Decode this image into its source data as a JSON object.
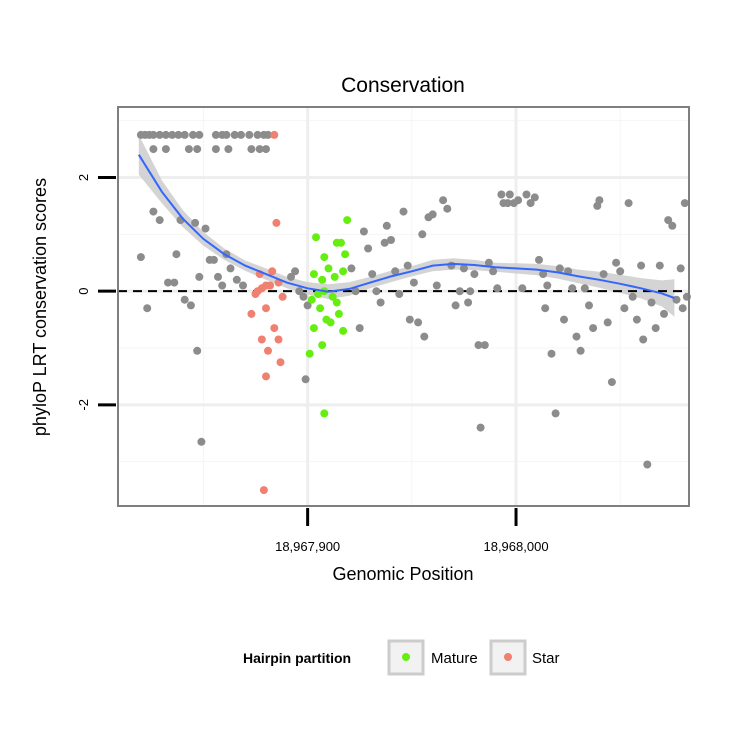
{
  "chart_data": {
    "type": "scatter",
    "title": "Conservation",
    "xlabel": "Genomic Position",
    "ylabel": "phyloP LRT conservation scores",
    "x_ticks": [
      {
        "value": 18967900,
        "label": "18,967,900"
      },
      {
        "value": 18968000,
        "label": "18,968,000"
      }
    ],
    "y_ticks": [
      {
        "value": -2,
        "label": "-2"
      },
      {
        "value": 0,
        "label": "0"
      },
      {
        "value": 2,
        "label": "2"
      }
    ],
    "xlim": [
      18967809,
      18968083
    ],
    "ylim": [
      -3.78,
      3.24
    ],
    "grid": true,
    "reference_line": {
      "y": 0,
      "style": "dashed"
    },
    "legend": {
      "title": "Hairpin partition",
      "position": "bottom",
      "entries": [
        {
          "label": "Mature",
          "color": "#66ee11"
        },
        {
          "label": "Star",
          "color": "#f08070"
        }
      ]
    },
    "colors": {
      "other": "#8c8c8c",
      "mature": "#66ee11",
      "star": "#f08070",
      "smooth": "#3366ff",
      "band": "#cccccc"
    },
    "smooth": {
      "x": [
        18967819,
        18967830,
        18967840,
        18967850,
        18967860,
        18967870,
        18967880,
        18967890,
        18967900,
        18967910,
        18967920,
        18967930,
        18967940,
        18967950,
        18967960,
        18967970,
        18967980,
        18967990,
        18968000,
        18968010,
        18968020,
        18968030,
        18968040,
        18968050,
        18968060,
        18968070,
        18968076
      ],
      "y": [
        2.4,
        1.75,
        1.28,
        0.92,
        0.65,
        0.45,
        0.3,
        0.15,
        0.05,
        -0.01,
        0.04,
        0.15,
        0.26,
        0.35,
        0.45,
        0.48,
        0.46,
        0.42,
        0.4,
        0.38,
        0.33,
        0.26,
        0.2,
        0.13,
        0.05,
        -0.04,
        -0.12
      ],
      "lower": [
        2.05,
        1.55,
        1.13,
        0.8,
        0.55,
        0.36,
        0.2,
        0.05,
        -0.06,
        -0.14,
        -0.08,
        0.05,
        0.16,
        0.26,
        0.35,
        0.38,
        0.37,
        0.34,
        0.31,
        0.28,
        0.22,
        0.14,
        0.06,
        -0.03,
        -0.13,
        -0.27,
        -0.45
      ],
      "upper": [
        2.75,
        1.95,
        1.43,
        1.04,
        0.75,
        0.54,
        0.4,
        0.25,
        0.16,
        0.12,
        0.16,
        0.25,
        0.36,
        0.44,
        0.55,
        0.58,
        0.55,
        0.5,
        0.49,
        0.48,
        0.44,
        0.38,
        0.34,
        0.29,
        0.23,
        0.19,
        0.21
      ]
    },
    "series": [
      {
        "name": "Mature",
        "color": "#66ee11",
        "points": [
          [
            18967904,
            0.95
          ],
          [
            18967908,
            0.6
          ],
          [
            18967910,
            0.4
          ],
          [
            18967914,
            0.85
          ],
          [
            18967916,
            0.85
          ],
          [
            18967918,
            0.65
          ],
          [
            18967919,
            1.25
          ],
          [
            18967913,
            0.25
          ],
          [
            18967903,
            0.3
          ],
          [
            18967907,
            0.2
          ],
          [
            18967917,
            0.35
          ],
          [
            18967905,
            -0.05
          ],
          [
            18967908,
            0.0
          ],
          [
            18967912,
            -0.1
          ],
          [
            18967902,
            -0.15
          ],
          [
            18967906,
            -0.3
          ],
          [
            18967914,
            -0.2
          ],
          [
            18967915,
            -0.4
          ],
          [
            18967903,
            -0.65
          ],
          [
            18967909,
            -0.5
          ],
          [
            18967911,
            -0.55
          ],
          [
            18967917,
            -0.7
          ],
          [
            18967907,
            -0.95
          ],
          [
            18967901,
            -1.1
          ],
          [
            18967908,
            -2.15
          ]
        ]
      },
      {
        "name": "Star",
        "color": "#f08070",
        "points": [
          [
            18967884,
            2.75
          ],
          [
            18967885,
            1.2
          ],
          [
            18967883,
            0.35
          ],
          [
            18967886,
            0.15
          ],
          [
            18967877,
            0.3
          ],
          [
            18967880,
            0.1
          ],
          [
            18967878,
            0.05
          ],
          [
            18967876,
            0.0
          ],
          [
            18967875,
            -0.05
          ],
          [
            18967882,
            0.1
          ],
          [
            18967888,
            -0.1
          ],
          [
            18967873,
            -0.4
          ],
          [
            18967880,
            -0.3
          ],
          [
            18967884,
            -0.65
          ],
          [
            18967886,
            -0.85
          ],
          [
            18967878,
            -0.85
          ],
          [
            18967881,
            -1.05
          ],
          [
            18967887,
            -1.25
          ],
          [
            18967880,
            -1.5
          ],
          [
            18967879,
            -3.5
          ]
        ]
      },
      {
        "name": "",
        "color": "#8c8c8c",
        "points": [
          [
            18967820,
            2.75
          ],
          [
            18967822,
            2.75
          ],
          [
            18967824,
            2.75
          ],
          [
            18967826,
            2.75
          ],
          [
            18967829,
            2.75
          ],
          [
            18967832,
            2.75
          ],
          [
            18967835,
            2.75
          ],
          [
            18967838,
            2.75
          ],
          [
            18967841,
            2.75
          ],
          [
            18967845,
            2.75
          ],
          [
            18967848,
            2.75
          ],
          [
            18967856,
            2.75
          ],
          [
            18967859,
            2.75
          ],
          [
            18967861,
            2.75
          ],
          [
            18967865,
            2.75
          ],
          [
            18967868,
            2.75
          ],
          [
            18967872,
            2.75
          ],
          [
            18967876,
            2.75
          ],
          [
            18967879,
            2.75
          ],
          [
            18967881,
            2.75
          ],
          [
            18967826,
            2.5
          ],
          [
            18967832,
            2.5
          ],
          [
            18967843,
            2.5
          ],
          [
            18967847,
            2.5
          ],
          [
            18967856,
            2.5
          ],
          [
            18967862,
            2.5
          ],
          [
            18967873,
            2.5
          ],
          [
            18967877,
            2.5
          ],
          [
            18967880,
            2.5
          ],
          [
            18967820,
            0.6
          ],
          [
            18967823,
            -0.3
          ],
          [
            18967826,
            1.4
          ],
          [
            18967829,
            1.25
          ],
          [
            18967833,
            0.15
          ],
          [
            18967836,
            0.15
          ],
          [
            18967837,
            0.65
          ],
          [
            18967839,
            1.25
          ],
          [
            18967841,
            -0.15
          ],
          [
            18967844,
            -0.25
          ],
          [
            18967846,
            1.2
          ],
          [
            18967848,
            0.25
          ],
          [
            18967851,
            1.1
          ],
          [
            18967853,
            0.55
          ],
          [
            18967855,
            0.55
          ],
          [
            18967857,
            0.25
          ],
          [
            18967859,
            0.1
          ],
          [
            18967861,
            0.65
          ],
          [
            18967863,
            0.4
          ],
          [
            18967866,
            0.2
          ],
          [
            18967869,
            0.1
          ],
          [
            18967847,
            -1.05
          ],
          [
            18967849,
            -2.65
          ],
          [
            18967892,
            0.25
          ],
          [
            18967894,
            0.35
          ],
          [
            18967896,
            0.0
          ],
          [
            18967898,
            -0.1
          ],
          [
            18967899,
            -1.55
          ],
          [
            18967900,
            -0.25
          ],
          [
            18967921,
            0.4
          ],
          [
            18967923,
            0.0
          ],
          [
            18967925,
            -0.65
          ],
          [
            18967927,
            1.05
          ],
          [
            18967929,
            0.75
          ],
          [
            18967931,
            0.3
          ],
          [
            18967933,
            0.0
          ],
          [
            18967935,
            -0.2
          ],
          [
            18967937,
            0.85
          ],
          [
            18967938,
            1.15
          ],
          [
            18967940,
            0.9
          ],
          [
            18967942,
            0.35
          ],
          [
            18967944,
            -0.05
          ],
          [
            18967946,
            1.4
          ],
          [
            18967948,
            0.45
          ],
          [
            18967949,
            -0.5
          ],
          [
            18967951,
            0.15
          ],
          [
            18967953,
            -0.55
          ],
          [
            18967955,
            1.0
          ],
          [
            18967956,
            -0.8
          ],
          [
            18967958,
            1.3
          ],
          [
            18967960,
            1.35
          ],
          [
            18967962,
            0.1
          ],
          [
            18967965,
            1.6
          ],
          [
            18967967,
            1.45
          ],
          [
            18967969,
            0.45
          ],
          [
            18967971,
            -0.25
          ],
          [
            18967973,
            0.0
          ],
          [
            18967975,
            0.4
          ],
          [
            18967977,
            -0.2
          ],
          [
            18967978,
            0.0
          ],
          [
            18967980,
            0.3
          ],
          [
            18967982,
            -0.95
          ],
          [
            18967983,
            -2.4
          ],
          [
            18967985,
            -0.95
          ],
          [
            18967987,
            0.5
          ],
          [
            18967989,
            0.35
          ],
          [
            18967991,
            0.05
          ],
          [
            18967993,
            1.7
          ],
          [
            18967994,
            1.55
          ],
          [
            18967996,
            1.55
          ],
          [
            18967997,
            1.7
          ],
          [
            18967999,
            1.55
          ],
          [
            18968001,
            1.6
          ],
          [
            18968003,
            0.05
          ],
          [
            18968005,
            1.7
          ],
          [
            18968007,
            1.55
          ],
          [
            18968009,
            1.65
          ],
          [
            18968011,
            0.55
          ],
          [
            18968013,
            0.3
          ],
          [
            18968014,
            -0.3
          ],
          [
            18968015,
            0.1
          ],
          [
            18968017,
            -1.1
          ],
          [
            18968019,
            -2.15
          ],
          [
            18968021,
            0.4
          ],
          [
            18968023,
            -0.5
          ],
          [
            18968025,
            0.35
          ],
          [
            18968027,
            0.05
          ],
          [
            18968029,
            -0.8
          ],
          [
            18968031,
            -1.05
          ],
          [
            18968033,
            0.05
          ],
          [
            18968035,
            -0.25
          ],
          [
            18968037,
            -0.65
          ],
          [
            18968039,
            1.5
          ],
          [
            18968040,
            1.6
          ],
          [
            18968042,
            0.3
          ],
          [
            18968044,
            -0.55
          ],
          [
            18968046,
            -1.6
          ],
          [
            18968048,
            0.5
          ],
          [
            18968050,
            0.35
          ],
          [
            18968052,
            -0.3
          ],
          [
            18968054,
            1.55
          ],
          [
            18968056,
            -0.1
          ],
          [
            18968058,
            -0.5
          ],
          [
            18968060,
            0.45
          ],
          [
            18968061,
            -0.85
          ],
          [
            18968063,
            -3.05
          ],
          [
            18968065,
            -0.2
          ],
          [
            18968067,
            -0.65
          ],
          [
            18968069,
            0.45
          ],
          [
            18968071,
            -0.4
          ],
          [
            18968073,
            1.25
          ],
          [
            18968075,
            1.15
          ],
          [
            18968077,
            -0.15
          ],
          [
            18968079,
            0.4
          ],
          [
            18968080,
            -0.3
          ],
          [
            18968081,
            1.55
          ],
          [
            18968082,
            -0.1
          ]
        ]
      }
    ]
  }
}
